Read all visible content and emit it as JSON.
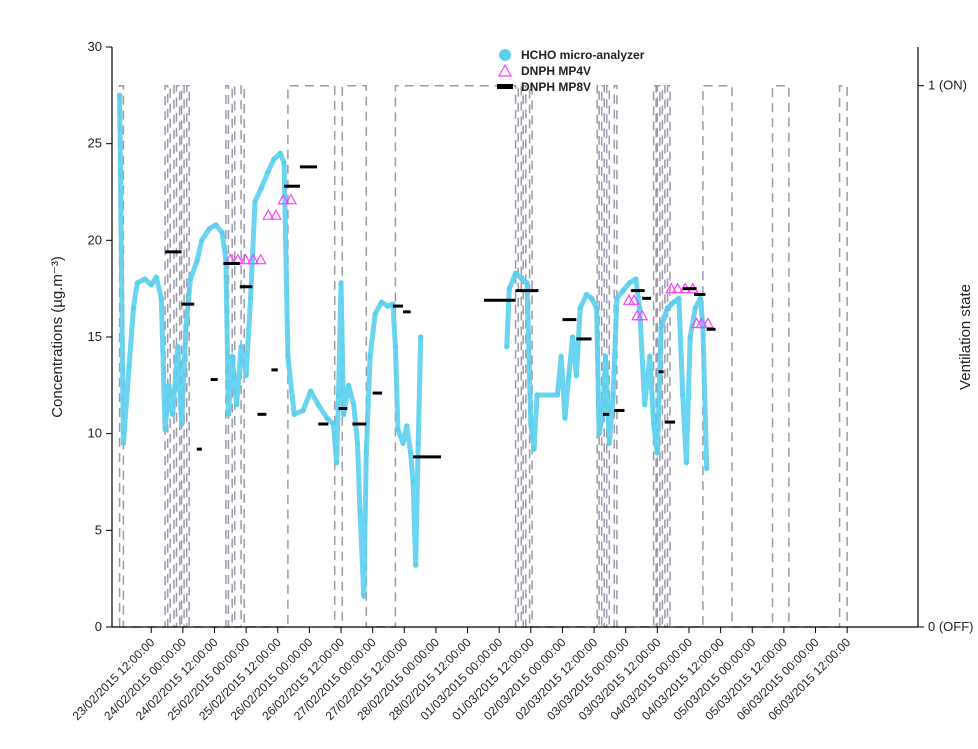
{
  "chart_data": {
    "type": "line",
    "ylabel": "Concentrations (µg.m⁻³)",
    "y2label": "Ventilation state",
    "ylim": [
      0,
      30
    ],
    "yticks": [
      "0",
      "5",
      "10",
      "15",
      "20",
      "25",
      "30"
    ],
    "y2ticks": [
      "0 (OFF)",
      "1 (ON)"
    ],
    "xlim_days": [
      22.88,
      35.62
    ],
    "xticks": [
      {
        "label": "23/02/2015 12:00:00",
        "day": 23.5
      },
      {
        "label": "24/02/2015 00:00:00",
        "day": 24.0
      },
      {
        "label": "24/02/2015 12:00:00",
        "day": 24.5
      },
      {
        "label": "25/02/2015 00:00:00",
        "day": 25.0
      },
      {
        "label": "25/02/2015 12:00:00",
        "day": 25.5
      },
      {
        "label": "26/02/2015 00:00:00",
        "day": 26.0
      },
      {
        "label": "26/02/2015 12:00:00",
        "day": 26.5
      },
      {
        "label": "27/02/2015 00:00:00",
        "day": 27.0
      },
      {
        "label": "27/02/2015 12:00:00",
        "day": 27.5
      },
      {
        "label": "28/02/2015 00:00:00",
        "day": 28.0
      },
      {
        "label": "28/02/2015 12:00:00",
        "day": 28.5
      },
      {
        "label": "01/03/2015 00:00:00",
        "day": 29.0
      },
      {
        "label": "01/03/2015 12:00:00",
        "day": 29.5
      },
      {
        "label": "02/03/2015 00:00:00",
        "day": 30.0
      },
      {
        "label": "02/03/2015 12:00:00",
        "day": 30.5
      },
      {
        "label": "03/03/2015 00:00:00",
        "day": 31.0
      },
      {
        "label": "03/03/2015 12:00:00",
        "day": 31.5
      },
      {
        "label": "04/03/2015 00:00:00",
        "day": 32.0
      },
      {
        "label": "04/03/2015 12:00:00",
        "day": 32.5
      },
      {
        "label": "05/03/2015 00:00:00",
        "day": 33.0
      },
      {
        "label": "05/03/2015 12:00:00",
        "day": 33.5
      },
      {
        "label": "06/03/2015 00:00:00",
        "day": 34.0
      },
      {
        "label": "06/03/2015 12:00:00",
        "day": 34.5
      }
    ],
    "legend": [
      {
        "name": "HCHO micro-analyzer",
        "marker": "circle",
        "color": "#5bcfee"
      },
      {
        "name": "DNPH MP4V",
        "marker": "triangle",
        "color": "#ff3fff"
      },
      {
        "name": "DNPH MP8V",
        "marker": "bar",
        "color": "#000000"
      }
    ],
    "series": [
      {
        "name": "HCHO micro-analyzer",
        "color": "#5bcfee",
        "points": [
          [
            23.0,
            27.5
          ],
          [
            23.06,
            9.5
          ],
          [
            23.15,
            13.5
          ],
          [
            23.22,
            16.5
          ],
          [
            23.28,
            17.8
          ],
          [
            23.4,
            18.0
          ],
          [
            23.5,
            17.7
          ],
          [
            23.58,
            18.1
          ],
          [
            23.66,
            17.0
          ],
          [
            23.72,
            10.2
          ],
          [
            23.78,
            12.5
          ],
          [
            23.84,
            11.0
          ],
          [
            23.92,
            14.5
          ],
          [
            23.98,
            10.5
          ],
          [
            24.05,
            15.5
          ],
          [
            24.12,
            18.0
          ],
          [
            24.22,
            18.9
          ],
          [
            24.3,
            20.0
          ],
          [
            24.42,
            20.6
          ],
          [
            24.52,
            20.8
          ],
          [
            24.62,
            20.4
          ],
          [
            24.68,
            19.0
          ],
          [
            24.72,
            11.0
          ],
          [
            24.78,
            14.0
          ],
          [
            24.85,
            11.5
          ],
          [
            24.92,
            14.5
          ],
          [
            25.0,
            13.0
          ],
          [
            25.07,
            17.0
          ],
          [
            25.14,
            22.0
          ],
          [
            25.24,
            22.7
          ],
          [
            25.34,
            23.5
          ],
          [
            25.44,
            24.2
          ],
          [
            25.54,
            24.5
          ],
          [
            25.6,
            24.0
          ],
          [
            25.66,
            14.0
          ],
          [
            25.76,
            11.0
          ],
          [
            25.9,
            11.2
          ],
          [
            26.02,
            12.2
          ],
          [
            26.14,
            11.5
          ],
          [
            26.28,
            10.8
          ],
          [
            26.38,
            10.5
          ],
          [
            26.43,
            8.5
          ],
          [
            26.46,
            12.0
          ],
          [
            26.5,
            17.8
          ],
          [
            26.54,
            11.0
          ],
          [
            26.62,
            12.5
          ],
          [
            26.7,
            11.5
          ],
          [
            26.76,
            9.5
          ],
          [
            26.8,
            6.0
          ],
          [
            26.86,
            1.6
          ],
          [
            26.9,
            9.0
          ],
          [
            26.96,
            14.0
          ],
          [
            27.04,
            16.2
          ],
          [
            27.14,
            16.8
          ],
          [
            27.24,
            16.6
          ],
          [
            27.32,
            16.7
          ],
          [
            27.36,
            14.5
          ],
          [
            27.4,
            10.2
          ],
          [
            27.48,
            9.5
          ],
          [
            27.54,
            10.4
          ],
          [
            27.6,
            9.0
          ],
          [
            27.64,
            7.5
          ],
          [
            27.68,
            3.2
          ],
          [
            27.72,
            9.5
          ],
          [
            27.76,
            15.0
          ],
          [
            29.12,
            14.5
          ],
          [
            29.16,
            17.5
          ],
          [
            29.26,
            18.3
          ],
          [
            29.36,
            18.0
          ],
          [
            29.44,
            17.8
          ],
          [
            29.5,
            10.5
          ],
          [
            29.55,
            9.2
          ],
          [
            29.6,
            12.0
          ],
          [
            29.92,
            12.0
          ],
          [
            29.98,
            14.0
          ],
          [
            30.04,
            10.8
          ],
          [
            30.1,
            13.0
          ],
          [
            30.16,
            15.0
          ],
          [
            30.22,
            13.0
          ],
          [
            30.28,
            16.5
          ],
          [
            30.38,
            17.2
          ],
          [
            30.46,
            17.0
          ],
          [
            30.54,
            16.5
          ],
          [
            30.58,
            10.0
          ],
          [
            30.64,
            11.0
          ],
          [
            30.68,
            14.0
          ],
          [
            30.74,
            9.5
          ],
          [
            30.8,
            12.0
          ],
          [
            30.86,
            17.0
          ],
          [
            30.96,
            17.4
          ],
          [
            31.06,
            17.8
          ],
          [
            31.16,
            18.0
          ],
          [
            31.22,
            16.5
          ],
          [
            31.3,
            11.5
          ],
          [
            31.38,
            14.0
          ],
          [
            31.44,
            10.5
          ],
          [
            31.5,
            9.0
          ],
          [
            31.56,
            15.5
          ],
          [
            31.66,
            16.5
          ],
          [
            31.76,
            16.8
          ],
          [
            31.84,
            17.0
          ],
          [
            31.9,
            12.0
          ],
          [
            31.96,
            8.5
          ],
          [
            32.02,
            15.0
          ],
          [
            32.1,
            16.5
          ],
          [
            32.18,
            17.0
          ],
          [
            32.22,
            15.5
          ],
          [
            32.28,
            8.2
          ]
        ]
      },
      {
        "name": "DNPH MP4V",
        "color": "#ff3fff",
        "points": [
          [
            24.75,
            19.0
          ],
          [
            24.87,
            19.0
          ],
          [
            24.99,
            19.0
          ],
          [
            25.11,
            19.0
          ],
          [
            25.23,
            19.0
          ],
          [
            25.35,
            21.3
          ],
          [
            25.47,
            21.3
          ],
          [
            25.59,
            22.1
          ],
          [
            25.71,
            22.1
          ],
          [
            31.05,
            16.9
          ],
          [
            31.13,
            16.9
          ],
          [
            31.18,
            16.1
          ],
          [
            31.26,
            16.1
          ],
          [
            31.72,
            17.5
          ],
          [
            31.82,
            17.5
          ],
          [
            31.94,
            17.5
          ],
          [
            32.06,
            17.5
          ],
          [
            32.12,
            15.7
          ],
          [
            32.2,
            15.7
          ],
          [
            32.3,
            15.7
          ]
        ]
      },
      {
        "name": "DNPH MP8V",
        "color": "#000000",
        "segments": [
          {
            "x0": 23.72,
            "x1": 23.98,
            "y": 19.4
          },
          {
            "x0": 23.98,
            "x1": 24.18,
            "y": 16.7
          },
          {
            "x0": 24.22,
            "x1": 24.3,
            "y": 9.2
          },
          {
            "x0": 24.44,
            "x1": 24.55,
            "y": 12.8
          },
          {
            "x0": 24.64,
            "x1": 24.9,
            "y": 18.8
          },
          {
            "x0": 24.9,
            "x1": 25.1,
            "y": 17.6
          },
          {
            "x0": 25.18,
            "x1": 25.32,
            "y": 11.0
          },
          {
            "x0": 25.4,
            "x1": 25.5,
            "y": 13.3
          },
          {
            "x0": 25.6,
            "x1": 25.85,
            "y": 22.8
          },
          {
            "x0": 25.85,
            "x1": 26.12,
            "y": 23.8
          },
          {
            "x0": 26.14,
            "x1": 26.3,
            "y": 10.5
          },
          {
            "x0": 26.46,
            "x1": 26.6,
            "y": 11.3
          },
          {
            "x0": 26.68,
            "x1": 26.9,
            "y": 10.5
          },
          {
            "x0": 27.0,
            "x1": 27.15,
            "y": 12.1
          },
          {
            "x0": 27.32,
            "x1": 27.48,
            "y": 16.6
          },
          {
            "x0": 27.48,
            "x1": 27.6,
            "y": 16.3
          },
          {
            "x0": 27.64,
            "x1": 28.08,
            "y": 8.8
          },
          {
            "x0": 28.76,
            "x1": 29.26,
            "y": 16.9
          },
          {
            "x0": 29.26,
            "x1": 29.62,
            "y": 17.4
          },
          {
            "x0": 30.0,
            "x1": 30.22,
            "y": 15.9
          },
          {
            "x0": 30.22,
            "x1": 30.46,
            "y": 14.9
          },
          {
            "x0": 30.64,
            "x1": 30.74,
            "y": 11.0
          },
          {
            "x0": 30.82,
            "x1": 30.98,
            "y": 11.2
          },
          {
            "x0": 31.08,
            "x1": 31.3,
            "y": 17.4
          },
          {
            "x0": 31.26,
            "x1": 31.4,
            "y": 17.0
          },
          {
            "x0": 31.52,
            "x1": 31.6,
            "y": 13.2
          },
          {
            "x0": 31.62,
            "x1": 31.78,
            "y": 10.6
          },
          {
            "x0": 31.9,
            "x1": 32.12,
            "y": 17.5
          },
          {
            "x0": 32.08,
            "x1": 32.26,
            "y": 17.2
          },
          {
            "x0": 32.28,
            "x1": 32.42,
            "y": 15.4
          }
        ]
      },
      {
        "name": "Ventilation state",
        "color": "#9a9aaa",
        "dashed": true,
        "points": [
          [
            23.0,
            0
          ],
          [
            23.0,
            1
          ],
          [
            23.06,
            1
          ],
          [
            23.06,
            0
          ],
          [
            23.72,
            0
          ],
          [
            23.72,
            1
          ],
          [
            23.76,
            1
          ],
          [
            23.76,
            0
          ],
          [
            23.8,
            0
          ],
          [
            23.8,
            1
          ],
          [
            23.86,
            1
          ],
          [
            23.86,
            0
          ],
          [
            23.9,
            0
          ],
          [
            23.9,
            1
          ],
          [
            23.95,
            1
          ],
          [
            23.95,
            0
          ],
          [
            23.98,
            0
          ],
          [
            23.98,
            1
          ],
          [
            24.02,
            1
          ],
          [
            24.02,
            0
          ],
          [
            24.06,
            0
          ],
          [
            24.06,
            1
          ],
          [
            24.1,
            1
          ],
          [
            24.1,
            0
          ],
          [
            24.68,
            0
          ],
          [
            24.68,
            1
          ],
          [
            24.72,
            1
          ],
          [
            24.72,
            0
          ],
          [
            24.78,
            0
          ],
          [
            24.78,
            1
          ],
          [
            24.82,
            1
          ],
          [
            24.82,
            0
          ],
          [
            24.92,
            0
          ],
          [
            24.92,
            1
          ],
          [
            24.97,
            1
          ],
          [
            24.97,
            0
          ],
          [
            25.66,
            0
          ],
          [
            25.66,
            1
          ],
          [
            26.4,
            1
          ],
          [
            26.4,
            0
          ],
          [
            26.52,
            0
          ],
          [
            26.52,
            1
          ],
          [
            26.9,
            1
          ],
          [
            26.9,
            0
          ],
          [
            27.36,
            0
          ],
          [
            27.36,
            1
          ],
          [
            29.26,
            1
          ],
          [
            29.26,
            0
          ],
          [
            29.3,
            0
          ],
          [
            29.3,
            1
          ],
          [
            29.35,
            1
          ],
          [
            29.35,
            0
          ],
          [
            29.38,
            0
          ],
          [
            29.38,
            1
          ],
          [
            29.42,
            1
          ],
          [
            29.42,
            0
          ],
          [
            29.48,
            0
          ],
          [
            29.48,
            1
          ],
          [
            29.52,
            1
          ],
          [
            29.52,
            0
          ],
          [
            30.55,
            0
          ],
          [
            30.55,
            1
          ],
          [
            30.58,
            1
          ],
          [
            30.58,
            0
          ],
          [
            30.62,
            0
          ],
          [
            30.62,
            1
          ],
          [
            30.66,
            1
          ],
          [
            30.66,
            0
          ],
          [
            30.7,
            0
          ],
          [
            30.7,
            1
          ],
          [
            30.74,
            1
          ],
          [
            30.74,
            0
          ],
          [
            30.82,
            0
          ],
          [
            30.82,
            1
          ],
          [
            30.86,
            1
          ],
          [
            30.86,
            0
          ],
          [
            31.44,
            0
          ],
          [
            31.44,
            1
          ],
          [
            31.48,
            1
          ],
          [
            31.48,
            0
          ],
          [
            31.5,
            0
          ],
          [
            31.5,
            1
          ],
          [
            31.54,
            1
          ],
          [
            31.54,
            0
          ],
          [
            31.58,
            0
          ],
          [
            31.58,
            1
          ],
          [
            31.62,
            1
          ],
          [
            31.62,
            0
          ],
          [
            31.66,
            0
          ],
          [
            31.66,
            1
          ],
          [
            31.7,
            1
          ],
          [
            31.7,
            0
          ],
          [
            32.22,
            0
          ],
          [
            32.22,
            1
          ],
          [
            32.68,
            1
          ],
          [
            32.68,
            0
          ],
          [
            33.32,
            0
          ],
          [
            33.32,
            1
          ],
          [
            33.58,
            1
          ],
          [
            33.58,
            0
          ],
          [
            34.38,
            0
          ],
          [
            34.38,
            1
          ],
          [
            34.5,
            1
          ],
          [
            34.5,
            0
          ]
        ]
      }
    ]
  }
}
